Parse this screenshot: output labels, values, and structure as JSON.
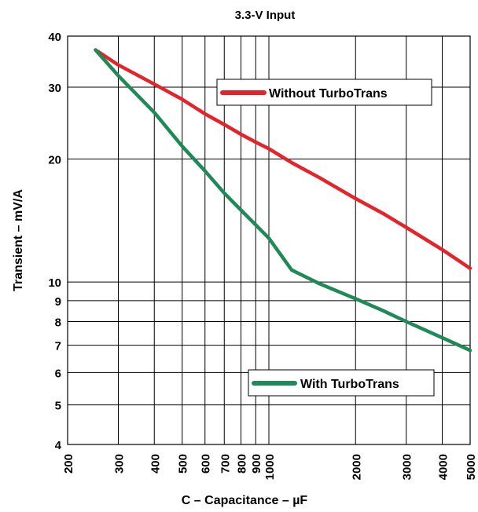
{
  "chart_data": {
    "type": "line",
    "title": "3.3-V Input",
    "xlabel": "C – Capacitance – µF",
    "ylabel": "Transient – mV/A",
    "x_scale": "log",
    "y_scale": "log",
    "xlim": [
      200,
      5000
    ],
    "ylim": [
      4,
      40
    ],
    "x_ticks": [
      200,
      300,
      400,
      500,
      600,
      700,
      800,
      900,
      1000,
      2000,
      3000,
      4000,
      5000
    ],
    "x_tick_labels": [
      "200",
      "300",
      "400",
      "500",
      "600",
      "700",
      "800",
      "900",
      "1000",
      "2000",
      "3000",
      "4000",
      "5000"
    ],
    "y_ticks": [
      4,
      5,
      6,
      7,
      8,
      9,
      10,
      20,
      30,
      40
    ],
    "y_tick_labels": [
      "4",
      "5",
      "6",
      "7",
      "8",
      "9",
      "10",
      "20",
      "30",
      "40"
    ],
    "grid": true,
    "series": [
      {
        "name": "Without TurboTrans",
        "color": "#e3242b",
        "x": [
          250,
          300,
          400,
          500,
          600,
          700,
          800,
          900,
          1000,
          1200,
          1500,
          2000,
          2500,
          3000,
          4000,
          5000
        ],
        "y": [
          37,
          34,
          30.5,
          28,
          25.8,
          24.3,
          23,
          22,
          21.2,
          19.6,
          18,
          16,
          14.7,
          13.6,
          12,
          10.8
        ]
      },
      {
        "name": "With TurboTrans",
        "color": "#1e8a57",
        "x": [
          250,
          300,
          400,
          500,
          600,
          700,
          800,
          900,
          1000,
          1200,
          1500,
          2000,
          2500,
          3000,
          4000,
          5000
        ],
        "y": [
          37,
          32,
          26,
          21.5,
          18.7,
          16.5,
          15,
          13.8,
          12.8,
          10.7,
          9.9,
          9.1,
          8.5,
          8,
          7.3,
          6.8
        ]
      }
    ]
  }
}
